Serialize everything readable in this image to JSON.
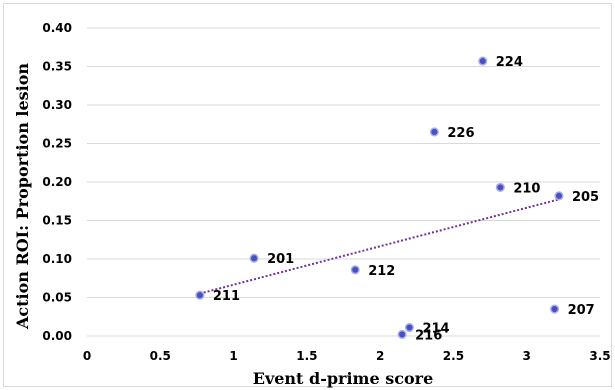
{
  "chart_data": {
    "type": "scatter",
    "title": "",
    "xlabel": "Event d-prime score",
    "ylabel": "Action ROI: Proportion lesion",
    "xlim": [
      0,
      3.5
    ],
    "ylim": [
      0,
      0.4
    ],
    "x_ticks": [
      "0",
      "0.5",
      "1",
      "1.5",
      "2",
      "2.5",
      "3",
      "3.5"
    ],
    "y_ticks": [
      "0.00",
      "0.05",
      "0.10",
      "0.15",
      "0.20",
      "0.25",
      "0.30",
      "0.35",
      "0.40"
    ],
    "grid": "horizontal",
    "points": [
      {
        "label": "224",
        "x": 2.7,
        "y": 0.357
      },
      {
        "label": "226",
        "x": 2.37,
        "y": 0.265
      },
      {
        "label": "210",
        "x": 2.82,
        "y": 0.193
      },
      {
        "label": "205",
        "x": 3.22,
        "y": 0.182
      },
      {
        "label": "201",
        "x": 1.14,
        "y": 0.101
      },
      {
        "label": "212",
        "x": 1.83,
        "y": 0.086
      },
      {
        "label": "211",
        "x": 0.77,
        "y": 0.053
      },
      {
        "label": "207",
        "x": 3.19,
        "y": 0.035
      },
      {
        "label": "214",
        "x": 2.2,
        "y": 0.011
      },
      {
        "label": "216",
        "x": 2.15,
        "y": 0.002
      }
    ],
    "trendline": {
      "type": "linear",
      "x_from": 0.77,
      "x_to": 3.22
    },
    "colors": {
      "marker_fill": "#4a4fc4",
      "marker_edge": "#a8aee8",
      "trendline": "#7030a0",
      "grid": "#d9d9d9"
    }
  }
}
